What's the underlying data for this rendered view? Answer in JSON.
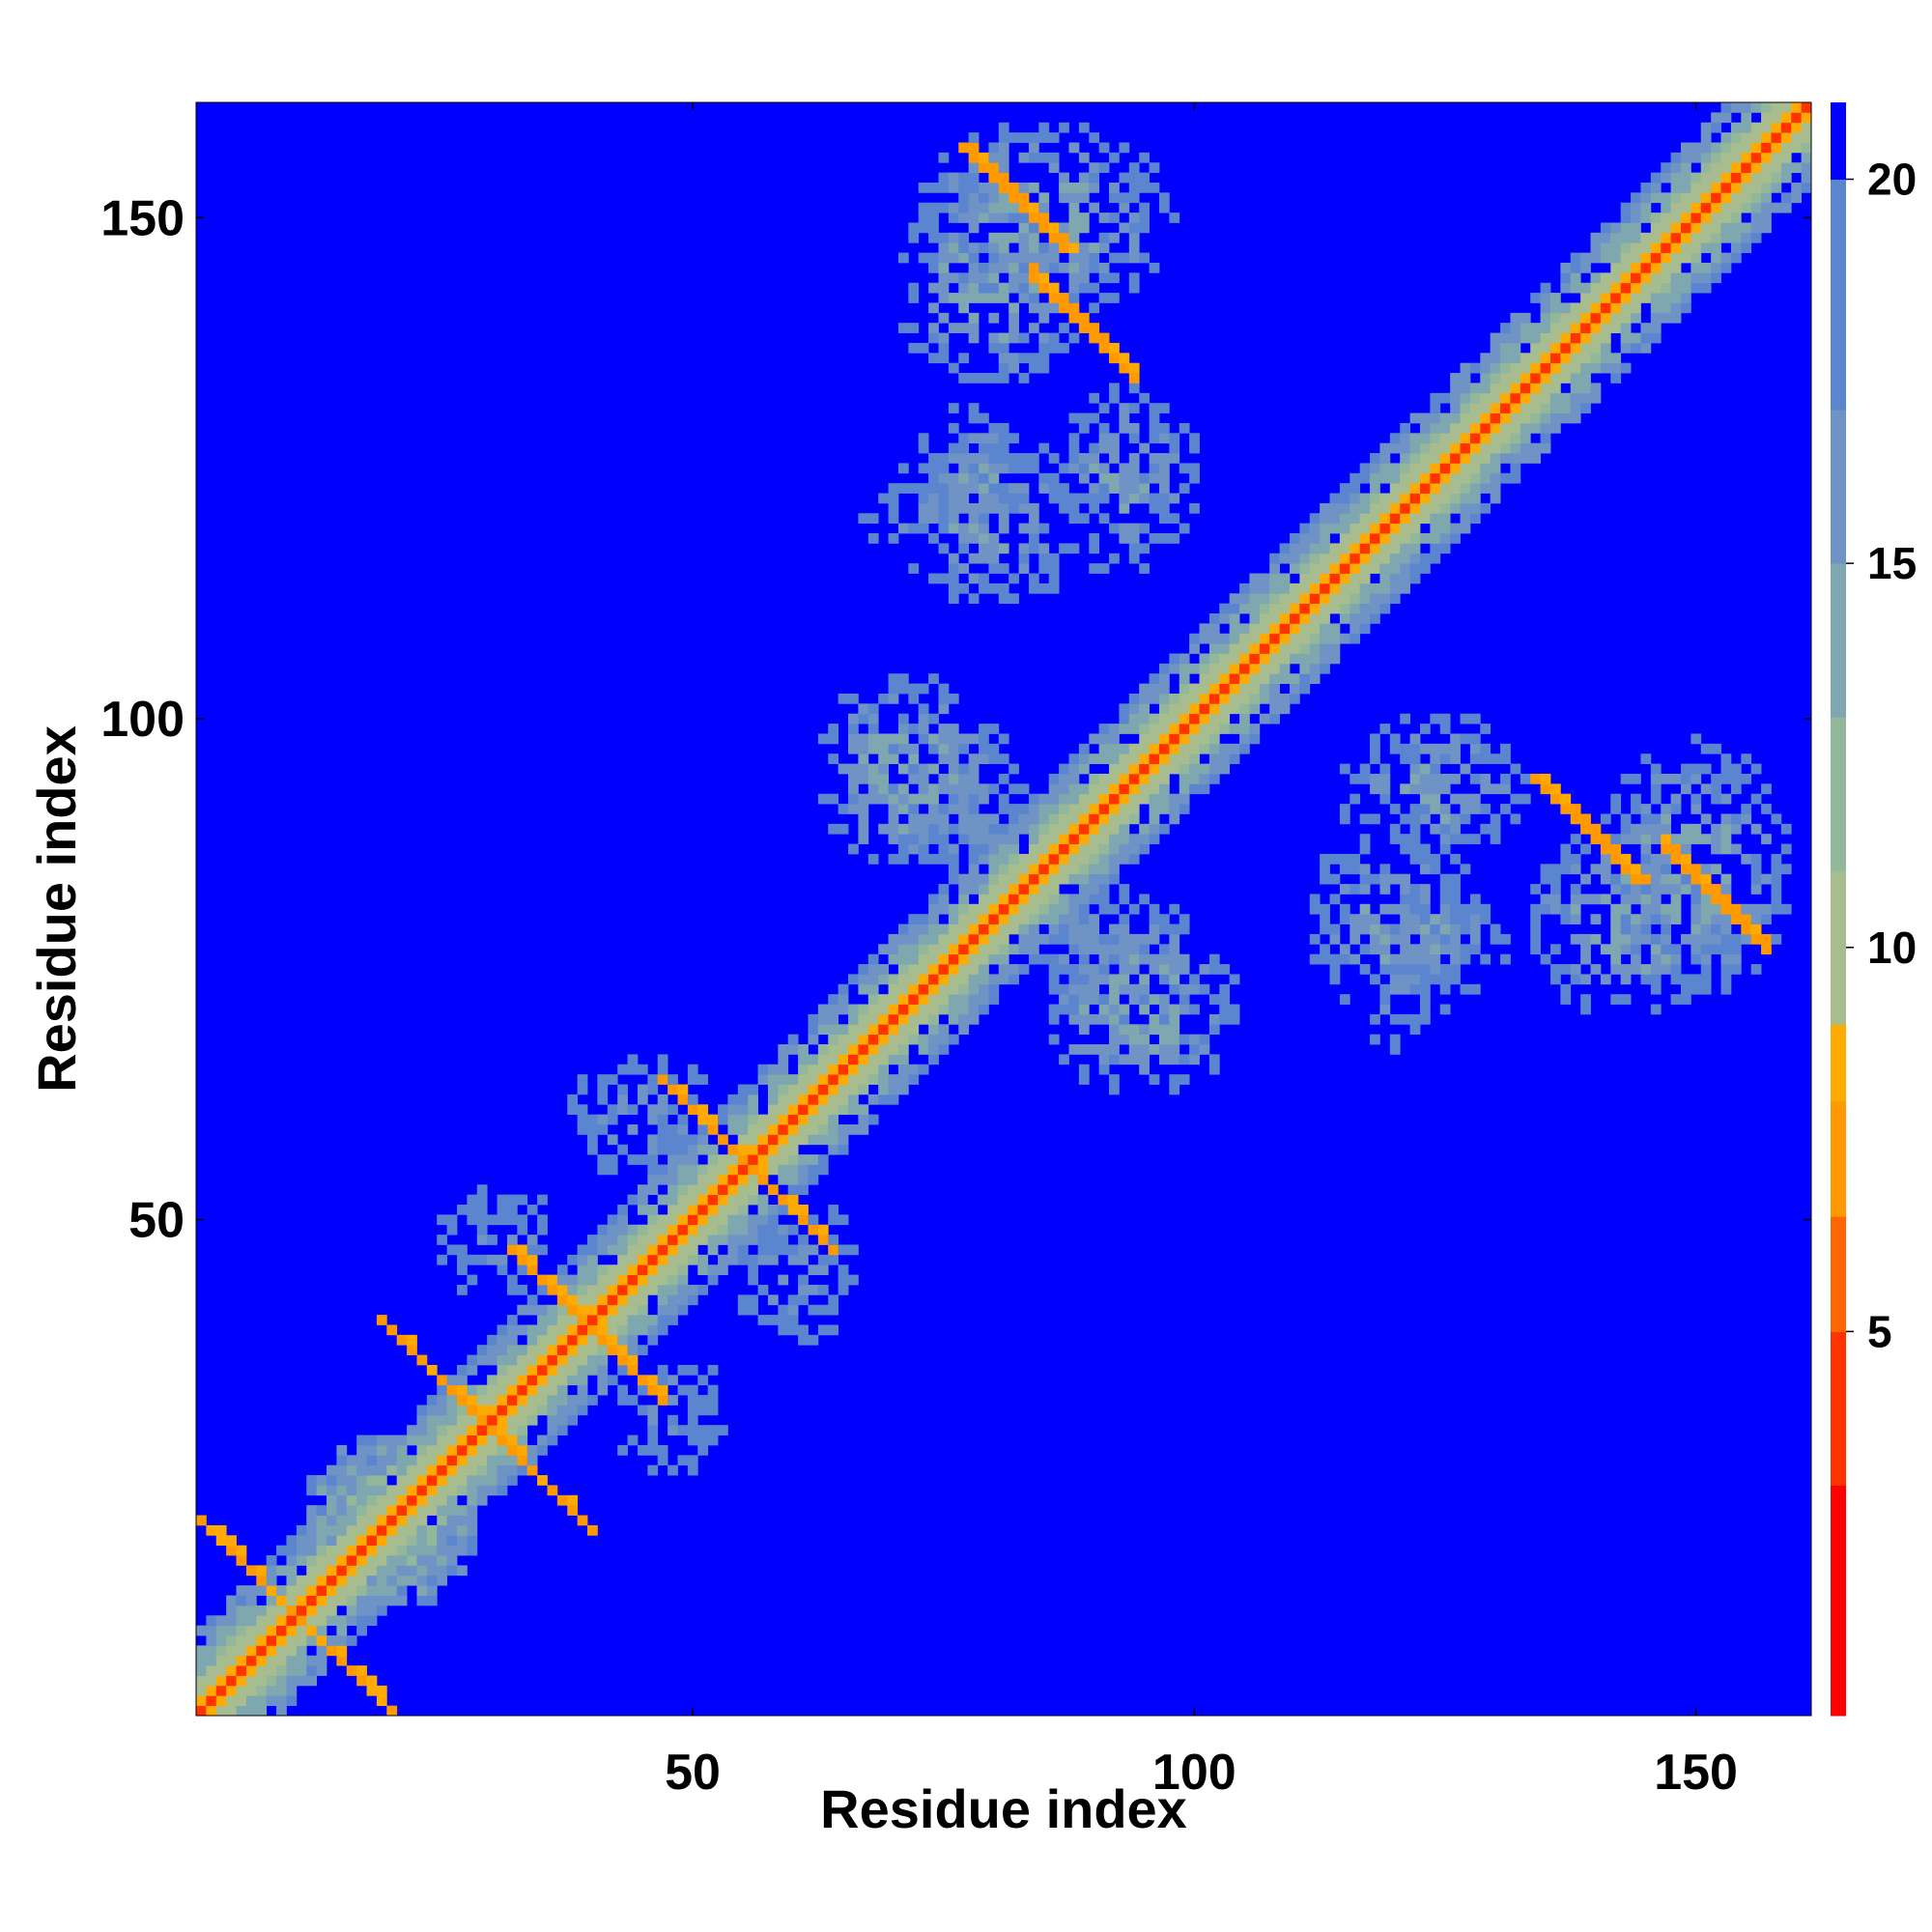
{
  "chart_data": {
    "type": "heatmap",
    "title": "",
    "xlabel": "Residue index",
    "ylabel": "Residue index",
    "xlim": [
      1,
      161
    ],
    "ylim": [
      1,
      161
    ],
    "xticks": [
      50,
      100,
      150
    ],
    "yticks": [
      50,
      100,
      150
    ],
    "colorbar": {
      "ticks": [
        5,
        10,
        15,
        20
      ],
      "range": [
        0,
        21
      ],
      "colors": [
        {
          "from": 0,
          "to": 3,
          "color": "#ff0000"
        },
        {
          "from": 3,
          "to": 5,
          "color": "#ff3300"
        },
        {
          "from": 5,
          "to": 6.5,
          "color": "#ff6600"
        },
        {
          "from": 6.5,
          "to": 8,
          "color": "#ff9900"
        },
        {
          "from": 8,
          "to": 9,
          "color": "#ffaa00"
        },
        {
          "from": 9,
          "to": 11,
          "color": "#a8bd8f"
        },
        {
          "from": 11,
          "to": 13,
          "color": "#93b79b"
        },
        {
          "from": 13,
          "to": 15,
          "color": "#7fa7b0"
        },
        {
          "from": 15,
          "to": 17,
          "color": "#6f93c4"
        },
        {
          "from": 17,
          "to": 20,
          "color": "#5b86cf"
        },
        {
          "from": 20,
          "to": 21,
          "color": "#0000ff"
        }
      ]
    },
    "description_of_values": "symmetric residue-residue distance map; values near diagonal ~2-5, background (>20) blue",
    "features": [
      {
        "kind": "diagonal",
        "from": 1,
        "to": 161,
        "value": 3.5
      },
      {
        "kind": "diagonal-band",
        "from": 1,
        "to": 161,
        "width": 3,
        "value": 8
      },
      {
        "kind": "diagonal-halo",
        "from": 1,
        "to": 161,
        "width": 8,
        "value": 12
      },
      {
        "kind": "antidiagonal-segment",
        "center": [
          6,
          15
        ],
        "half_length": 5,
        "value": 7
      },
      {
        "kind": "antidiagonal-segment",
        "center": [
          25,
          34
        ],
        "half_length": 6,
        "value": 7
      },
      {
        "kind": "antidiagonal-segment",
        "center": [
          37,
          42
        ],
        "half_length": 5,
        "value": 7
      },
      {
        "kind": "antidiagonal-segment",
        "center": [
          53,
          58
        ],
        "half_length": 6,
        "value": 7
      },
      {
        "kind": "parallel-segment",
        "center": [
          82,
          152
        ],
        "half_length": 5,
        "value": 6.5
      },
      {
        "kind": "parallel-segment",
        "center": [
          139,
          89
        ],
        "half_length": 5,
        "value": 6.5
      },
      {
        "kind": "patch",
        "center": [
          85,
          150
        ],
        "rx": 13,
        "ry": 10,
        "value": 13
      },
      {
        "kind": "patch",
        "center": [
          79,
          120
        ],
        "rx": 12,
        "ry": 9,
        "value": 14
      },
      {
        "kind": "patch",
        "center": [
          71,
          95
        ],
        "rx": 9,
        "ry": 10,
        "value": 13
      },
      {
        "kind": "patch",
        "center": [
          93,
          75
        ],
        "rx": 10,
        "ry": 8,
        "value": 14
      },
      {
        "kind": "patch",
        "center": [
          124,
          93
        ],
        "rx": 10,
        "ry": 8,
        "value": 14
      },
      {
        "kind": "patch",
        "center": [
          143,
          80
        ],
        "rx": 10,
        "ry": 10,
        "value": 13
      },
      {
        "kind": "patch",
        "center": [
          124,
          78
        ],
        "rx": 8,
        "ry": 6,
        "value": 14
      },
      {
        "kind": "patch",
        "center": [
          20,
          20
        ],
        "rx": 9,
        "ry": 9,
        "value": 11
      },
      {
        "kind": "patch",
        "center": [
          45,
          60
        ],
        "rx": 9,
        "ry": 7,
        "value": 15
      },
      {
        "kind": "patch",
        "center": [
          30,
          48
        ],
        "rx": 7,
        "ry": 6,
        "value": 15
      }
    ]
  }
}
